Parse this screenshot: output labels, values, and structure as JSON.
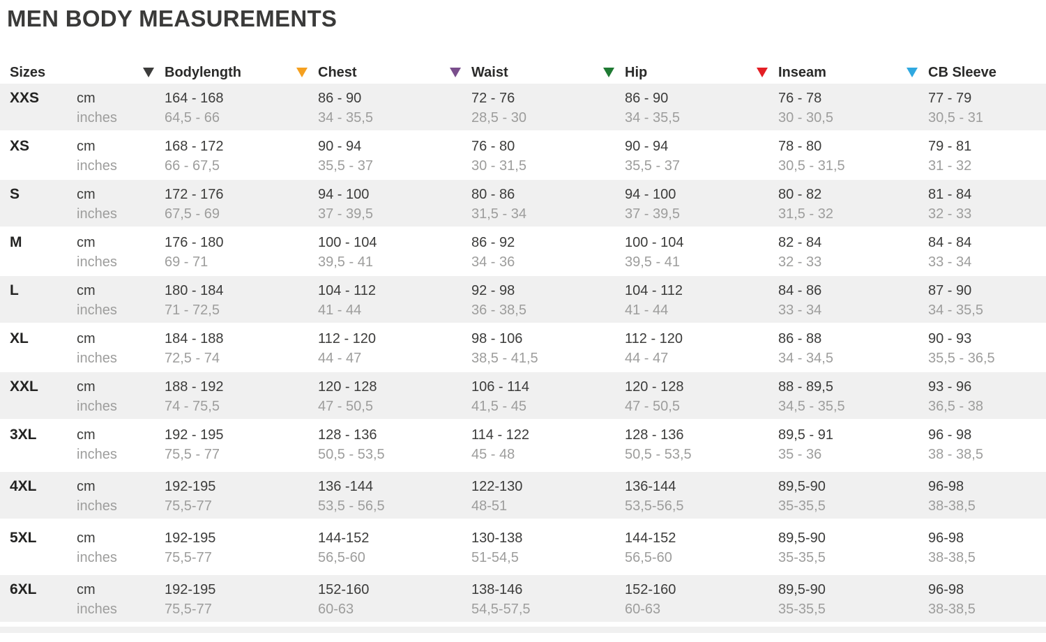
{
  "title": "MEN BODY MEASUREMENTS",
  "table": {
    "size_header": "Sizes",
    "unit_labels": {
      "cm": "cm",
      "inches": "inches"
    },
    "columns": [
      {
        "label": "Bodylength",
        "marker_color": "#3c3c3b"
      },
      {
        "label": "Chest",
        "marker_color": "#f5a01f"
      },
      {
        "label": "Waist",
        "marker_color": "#7a4e8c"
      },
      {
        "label": "Hip",
        "marker_color": "#1f7a33"
      },
      {
        "label": "Inseam",
        "marker_color": "#e31e24"
      },
      {
        "label": "CB Sleeve",
        "marker_color": "#2fa8e0"
      }
    ],
    "rows": [
      {
        "size": "XXS",
        "cm": [
          "164 - 168",
          "86 - 90",
          "72 - 76",
          "86 - 90",
          "76 - 78",
          "77 - 79"
        ],
        "inches": [
          "64,5 - 66",
          "34 - 35,5",
          "28,5 - 30",
          "34 - 35,5",
          "30 - 30,5",
          "30,5 - 31"
        ]
      },
      {
        "size": "XS",
        "cm": [
          "168 - 172",
          "90 - 94",
          "76 - 80",
          "90 - 94",
          "78 - 80",
          "79 - 81"
        ],
        "inches": [
          "66 - 67,5",
          "35,5 - 37",
          "30 - 31,5",
          "35,5 - 37",
          "30,5 - 31,5",
          "31 - 32"
        ]
      },
      {
        "size": "S",
        "cm": [
          "172 - 176",
          "94 - 100",
          "80 - 86",
          "94 - 100",
          "80 - 82",
          "81 - 84"
        ],
        "inches": [
          "67,5 - 69",
          "37 - 39,5",
          "31,5 - 34",
          "37 - 39,5",
          "31,5 - 32",
          "32 - 33"
        ]
      },
      {
        "size": "M",
        "cm": [
          "176 - 180",
          "100 - 104",
          "86 - 92",
          "100 - 104",
          "82 - 84",
          "84 - 84"
        ],
        "inches": [
          "69 - 71",
          "39,5 - 41",
          "34 - 36",
          "39,5 - 41",
          "32 - 33",
          "33 - 34"
        ]
      },
      {
        "size": "L",
        "cm": [
          "180 - 184",
          "104 - 112",
          "92 - 98",
          "104 - 112",
          "84 - 86",
          "87 - 90"
        ],
        "inches": [
          "71 - 72,5",
          "41 - 44",
          "36 - 38,5",
          "41 - 44",
          "33 - 34",
          "34 - 35,5"
        ]
      },
      {
        "size": "XL",
        "cm": [
          "184 - 188",
          "112 - 120",
          "98 - 106",
          "112 - 120",
          "86 - 88",
          "90 - 93"
        ],
        "inches": [
          "72,5 - 74",
          "44 - 47",
          "38,5 - 41,5",
          "44 - 47",
          "34 - 34,5",
          "35,5 - 36,5"
        ]
      },
      {
        "size": "XXL",
        "cm": [
          "188 - 192",
          "120 - 128",
          "106 - 114",
          "120 - 128",
          "88 - 89,5",
          "93 - 96"
        ],
        "inches": [
          "74 - 75,5",
          "47 - 50,5",
          "41,5 - 45",
          "47 - 50,5",
          "34,5 - 35,5",
          "36,5 - 38"
        ]
      },
      {
        "size": "3XL",
        "cm": [
          "192 - 195",
          "128 - 136",
          "114 - 122",
          "128 - 136",
          "89,5 - 91",
          "96 - 98"
        ],
        "inches": [
          "75,5 - 77",
          "50,5 - 53,5",
          "45 - 48",
          "50,5 - 53,5",
          "35 - 36",
          "38 - 38,5"
        ]
      },
      {
        "size": "4XL",
        "cm": [
          "192-195",
          "136 -144",
          "122-130",
          "136-144",
          "89,5-90",
          "96-98"
        ],
        "inches": [
          "75,5-77",
          "53,5 - 56,5",
          "48-51",
          "53,5-56,5",
          "35-35,5",
          "38-38,5"
        ]
      },
      {
        "size": "5XL",
        "cm": [
          "192-195",
          "144-152",
          "130-138",
          "144-152",
          "89,5-90",
          "96-98"
        ],
        "inches": [
          "75,5-77",
          "56,5-60",
          "51-54,5",
          "56,5-60",
          "35-35,5",
          "38-38,5"
        ]
      },
      {
        "size": "6XL",
        "cm": [
          "192-195",
          "152-160",
          "138-146",
          "152-160",
          "89,5-90",
          "96-98"
        ],
        "inches": [
          "75,5-77",
          "60-63",
          "54,5-57,5",
          "60-63",
          "35-35,5",
          "38-38,5"
        ]
      }
    ]
  }
}
